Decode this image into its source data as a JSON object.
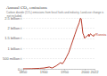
{
  "chart_data": {
    "type": "line",
    "title": "Annual CO₂ emissions",
    "subtitle": "Carbon dioxide (CO₂) emissions from fossil fuels and industry. Land-use change is not included.",
    "x": [
      1850,
      1870,
      1890,
      1900,
      1913,
      1920,
      1930,
      1940,
      1945,
      1950,
      1955,
      1960,
      1965,
      1970,
      1975,
      1980,
      1985,
      1988,
      1990,
      1992,
      1994,
      1996,
      1998,
      2000,
      2004,
      2008,
      2009,
      2012,
      2016,
      2020,
      2022
    ],
    "series": [
      {
        "name": "Russia",
        "color": "#b73b2a",
        "values": [
          2000000,
          8000000,
          25000000,
          40000000,
          90000000,
          40000000,
          150000000,
          300000000,
          250000000,
          400000000,
          600000000,
          800000000,
          1100000000,
          1400000000,
          1700000000,
          2000000000,
          2250000000,
          2480000000,
          2450000000,
          2100000000,
          1750000000,
          1650000000,
          1500000000,
          1550000000,
          1600000000,
          1700000000,
          1580000000,
          1720000000,
          1650000000,
          1600000000,
          1700000000
        ]
      }
    ],
    "xlim": [
      1850,
      2022
    ],
    "xticks": [
      1850,
      1900,
      1950,
      2000,
      2022
    ],
    "ylim": [
      0,
      2500000000
    ],
    "yticks": [
      {
        "value": 0,
        "label": "0 t"
      },
      {
        "value": 500000000,
        "label": "500 million t"
      },
      {
        "value": 1000000000,
        "label": "1 billion t"
      },
      {
        "value": 1500000000,
        "label": "1.5 billion t"
      },
      {
        "value": 2000000000,
        "label": "2 billion t"
      },
      {
        "value": 2500000000,
        "label": "2.5 billion t"
      }
    ],
    "grid": true
  }
}
